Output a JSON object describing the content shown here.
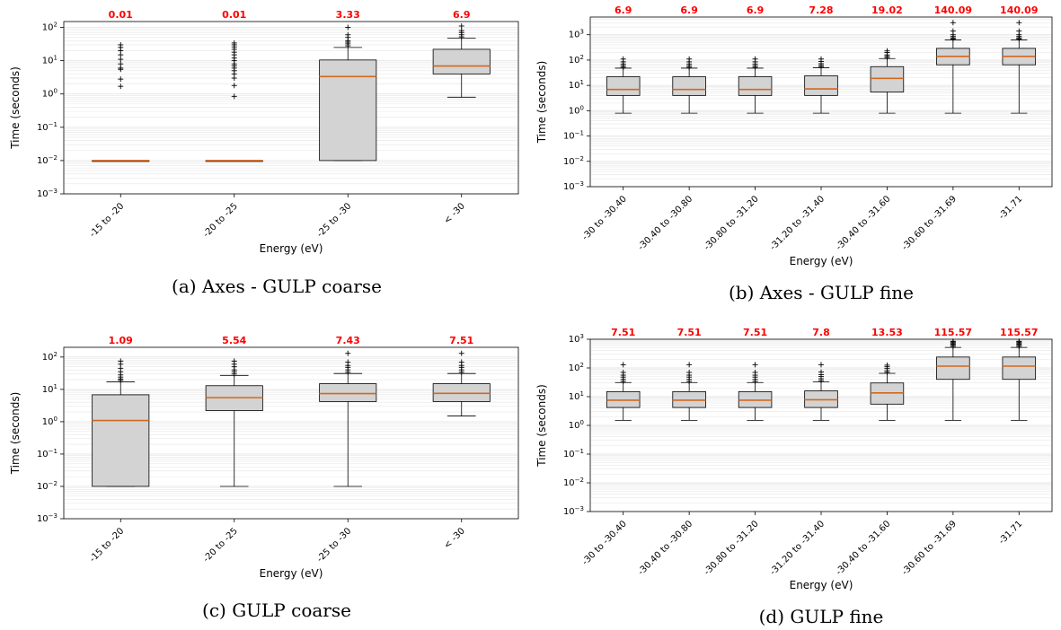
{
  "colors": {
    "box": "#d3d3d3",
    "median": "#d2691e",
    "median_label": "#ff0000",
    "grid": "#e6e6e6"
  },
  "chart_data": [
    {
      "panel": "a",
      "caption": "(a) Axes - GULP coarse",
      "type": "box",
      "scale": "log",
      "ylim": [
        0.001,
        150
      ],
      "yticks": [
        "10^-3",
        "10^-2",
        "10^-1",
        "10^0",
        "10^1",
        "10^2"
      ],
      "xlabel": "Energy (eV)",
      "ylabel": "Time (seconds)",
      "categories": [
        "-15 to -20",
        "-20 to -25",
        "-25 to -30",
        "< -30"
      ],
      "median_labels": [
        "0.01",
        "0.01",
        "3.33",
        "6.9"
      ],
      "boxes": [
        {
          "q1": 0.01,
          "median": 0.01,
          "q3": 0.01,
          "whisker_low": 0.01,
          "whisker_high": 0.01,
          "outliers": [
            1.7,
            2.8,
            5.5,
            6,
            8,
            11,
            15,
            20,
            25,
            30
          ]
        },
        {
          "q1": 0.01,
          "median": 0.01,
          "q3": 0.01,
          "whisker_low": 0.01,
          "whisker_high": 0.01,
          "outliers": [
            0.85,
            1.8,
            3,
            4,
            5,
            6,
            7,
            8,
            10,
            12,
            15,
            18,
            22,
            26,
            30,
            34
          ]
        },
        {
          "q1": 0.01,
          "median": 3.33,
          "q3": 10.5,
          "whisker_low": 0.01,
          "whisker_high": 25,
          "outliers": [
            28,
            32,
            36,
            40,
            50,
            60,
            100
          ]
        },
        {
          "q1": 4,
          "median": 6.9,
          "q3": 22,
          "whisker_low": 0.8,
          "whisker_high": 48,
          "outliers": [
            52,
            60,
            70,
            80,
            110
          ]
        }
      ]
    },
    {
      "panel": "b",
      "caption": "(b) Axes - GULP fine",
      "type": "box",
      "scale": "log",
      "ylim": [
        0.001,
        5000
      ],
      "yticks": [
        "10^-3",
        "10^-2",
        "10^-1",
        "10^0",
        "10^1",
        "10^2",
        "10^3"
      ],
      "xlabel": "Energy (eV)",
      "ylabel": "Time (seconds)",
      "categories": [
        "-30 to -30.40",
        "-30.40 to -30.80",
        "-30.80 to -31.20",
        "-31.20 to -31.40",
        "-30.40 to -31.60",
        "-30.60 to -31.69",
        "-31.71"
      ],
      "median_labels": [
        "6.9",
        "6.9",
        "6.9",
        "7.28",
        "19.02",
        "140.09",
        "140.09"
      ],
      "boxes": [
        {
          "q1": 4,
          "median": 6.9,
          "q3": 22,
          "whisker_low": 0.8,
          "whisker_high": 48,
          "outliers": [
            52,
            60,
            70,
            85,
            110
          ]
        },
        {
          "q1": 4,
          "median": 6.9,
          "q3": 22,
          "whisker_low": 0.8,
          "whisker_high": 48,
          "outliers": [
            52,
            60,
            70,
            85,
            110
          ]
        },
        {
          "q1": 4,
          "median": 6.9,
          "q3": 22,
          "whisker_low": 0.8,
          "whisker_high": 48,
          "outliers": [
            52,
            60,
            70,
            85,
            110
          ]
        },
        {
          "q1": 4,
          "median": 7.28,
          "q3": 24,
          "whisker_low": 0.8,
          "whisker_high": 50,
          "outliers": [
            55,
            62,
            72,
            88,
            110
          ]
        },
        {
          "q1": 5.5,
          "median": 19.02,
          "q3": 55,
          "whisker_low": 0.8,
          "whisker_high": 115,
          "outliers": [
            125,
            140,
            160,
            200,
            230
          ]
        },
        {
          "q1": 65,
          "median": 140.09,
          "q3": 290,
          "whisker_low": 0.8,
          "whisker_high": 620,
          "outliers": [
            680,
            750,
            850,
            1000,
            1400,
            3000
          ]
        },
        {
          "q1": 65,
          "median": 140.09,
          "q3": 290,
          "whisker_low": 0.8,
          "whisker_high": 620,
          "outliers": [
            680,
            750,
            850,
            1000,
            1400,
            3000
          ]
        }
      ]
    },
    {
      "panel": "c",
      "caption": "(c) GULP coarse",
      "type": "box",
      "scale": "log",
      "ylim": [
        0.001,
        200
      ],
      "yticks": [
        "10^-3",
        "10^-2",
        "10^-1",
        "10^0",
        "10^1",
        "10^2"
      ],
      "xlabel": "Energy (eV)",
      "ylabel": "Time (seconds)",
      "categories": [
        "-15 to -20",
        "-20 to -25",
        "-25 to -30",
        "< -30"
      ],
      "median_labels": [
        "1.09",
        "5.54",
        "7.43",
        "7.51"
      ],
      "boxes": [
        {
          "q1": 0.01,
          "median": 1.09,
          "q3": 6.8,
          "whisker_low": 0.01,
          "whisker_high": 17,
          "outliers": [
            19,
            21,
            24,
            28,
            35,
            45,
            60,
            75
          ]
        },
        {
          "q1": 2.2,
          "median": 5.54,
          "q3": 13,
          "whisker_low": 0.01,
          "whisker_high": 27,
          "outliers": [
            30,
            35,
            40,
            50,
            60,
            75
          ]
        },
        {
          "q1": 4.2,
          "median": 7.43,
          "q3": 15,
          "whisker_low": 0.01,
          "whisker_high": 31,
          "outliers": [
            34,
            40,
            48,
            55,
            70,
            130
          ]
        },
        {
          "q1": 4.2,
          "median": 7.51,
          "q3": 15,
          "whisker_low": 1.5,
          "whisker_high": 31,
          "outliers": [
            34,
            40,
            48,
            55,
            70,
            130
          ]
        }
      ]
    },
    {
      "panel": "d",
      "caption": "(d) GULP fine",
      "type": "box",
      "scale": "log",
      "ylim": [
        0.001,
        1000
      ],
      "yticks": [
        "10^-3",
        "10^-2",
        "10^-1",
        "10^0",
        "10^1",
        "10^2",
        "10^3"
      ],
      "xlabel": "Energy (eV)",
      "ylabel": "Time (seconds)",
      "categories": [
        "-30 to -30.40",
        "-30.40 to -30.80",
        "-30.80 to -31.20",
        "-31.20 to -31.40",
        "-30.40 to -31.60",
        "-30.60 to -31.69",
        "-31.71"
      ],
      "median_labels": [
        "7.51",
        "7.51",
        "7.51",
        "7.8",
        "13.53",
        "115.57",
        "115.57"
      ],
      "boxes": [
        {
          "q1": 4.2,
          "median": 7.51,
          "q3": 15,
          "whisker_low": 1.5,
          "whisker_high": 31,
          "outliers": [
            34,
            40,
            48,
            56,
            70,
            130
          ]
        },
        {
          "q1": 4.2,
          "median": 7.51,
          "q3": 15,
          "whisker_low": 1.5,
          "whisker_high": 31,
          "outliers": [
            34,
            40,
            48,
            56,
            70,
            130
          ]
        },
        {
          "q1": 4.2,
          "median": 7.51,
          "q3": 15,
          "whisker_low": 1.5,
          "whisker_high": 31,
          "outliers": [
            34,
            40,
            48,
            56,
            70,
            130
          ]
        },
        {
          "q1": 4.2,
          "median": 7.8,
          "q3": 16,
          "whisker_low": 1.5,
          "whisker_high": 33,
          "outliers": [
            36,
            42,
            50,
            58,
            72,
            130
          ]
        },
        {
          "q1": 5.5,
          "median": 13.53,
          "q3": 30,
          "whisker_low": 1.5,
          "whisker_high": 65,
          "outliers": [
            70,
            80,
            95,
            110,
            125
          ]
        },
        {
          "q1": 40,
          "median": 115.57,
          "q3": 240,
          "whisker_low": 1.5,
          "whisker_high": 520,
          "outliers": [
            560,
            620,
            680,
            740,
            800,
            850
          ]
        },
        {
          "q1": 40,
          "median": 115.57,
          "q3": 240,
          "whisker_low": 1.5,
          "whisker_high": 520,
          "outliers": [
            560,
            620,
            680,
            740,
            800,
            850
          ]
        }
      ]
    }
  ]
}
